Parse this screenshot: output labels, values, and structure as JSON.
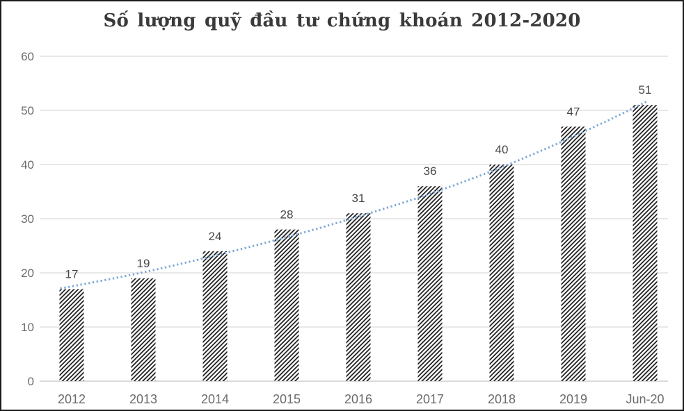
{
  "chart_data": {
    "type": "bar",
    "title": "Số lượng quỹ đầu tư chứng khoán 2012-2020",
    "categories": [
      "2012",
      "2013",
      "2014",
      "2015",
      "2016",
      "2017",
      "2018",
      "2019",
      "Jun-20"
    ],
    "values": [
      17,
      19,
      24,
      28,
      31,
      36,
      40,
      47,
      51
    ],
    "series": [
      {
        "name": "bars",
        "style": "diagonal-hatch",
        "values": [
          17,
          19,
          24,
          28,
          31,
          36,
          40,
          47,
          51
        ]
      },
      {
        "name": "trendline",
        "style": "dotted-curve",
        "values": [
          17.5,
          20.1,
          23.2,
          26.6,
          30.4,
          34.6,
          39.5,
          45.2,
          51.5
        ]
      }
    ],
    "data_labels": [
      "17",
      "19",
      "24",
      "28",
      "31",
      "36",
      "40",
      "47",
      "51"
    ],
    "xlabel": "",
    "ylabel": "",
    "ylim": [
      0,
      60
    ],
    "yticks": [
      0,
      10,
      20,
      30,
      40,
      50,
      60
    ],
    "grid": true,
    "legend_position": "none",
    "colors": {
      "bar_hatch": "#161616",
      "trend": "#7fa8d8",
      "grid": "#d9d9d9",
      "baseline": "#c4c4c4",
      "value_label": "#474747",
      "axis_text": "#6b6b6b",
      "title": "#3a3a3a",
      "border": "#1c1c1c",
      "background": "#ffffff"
    }
  }
}
